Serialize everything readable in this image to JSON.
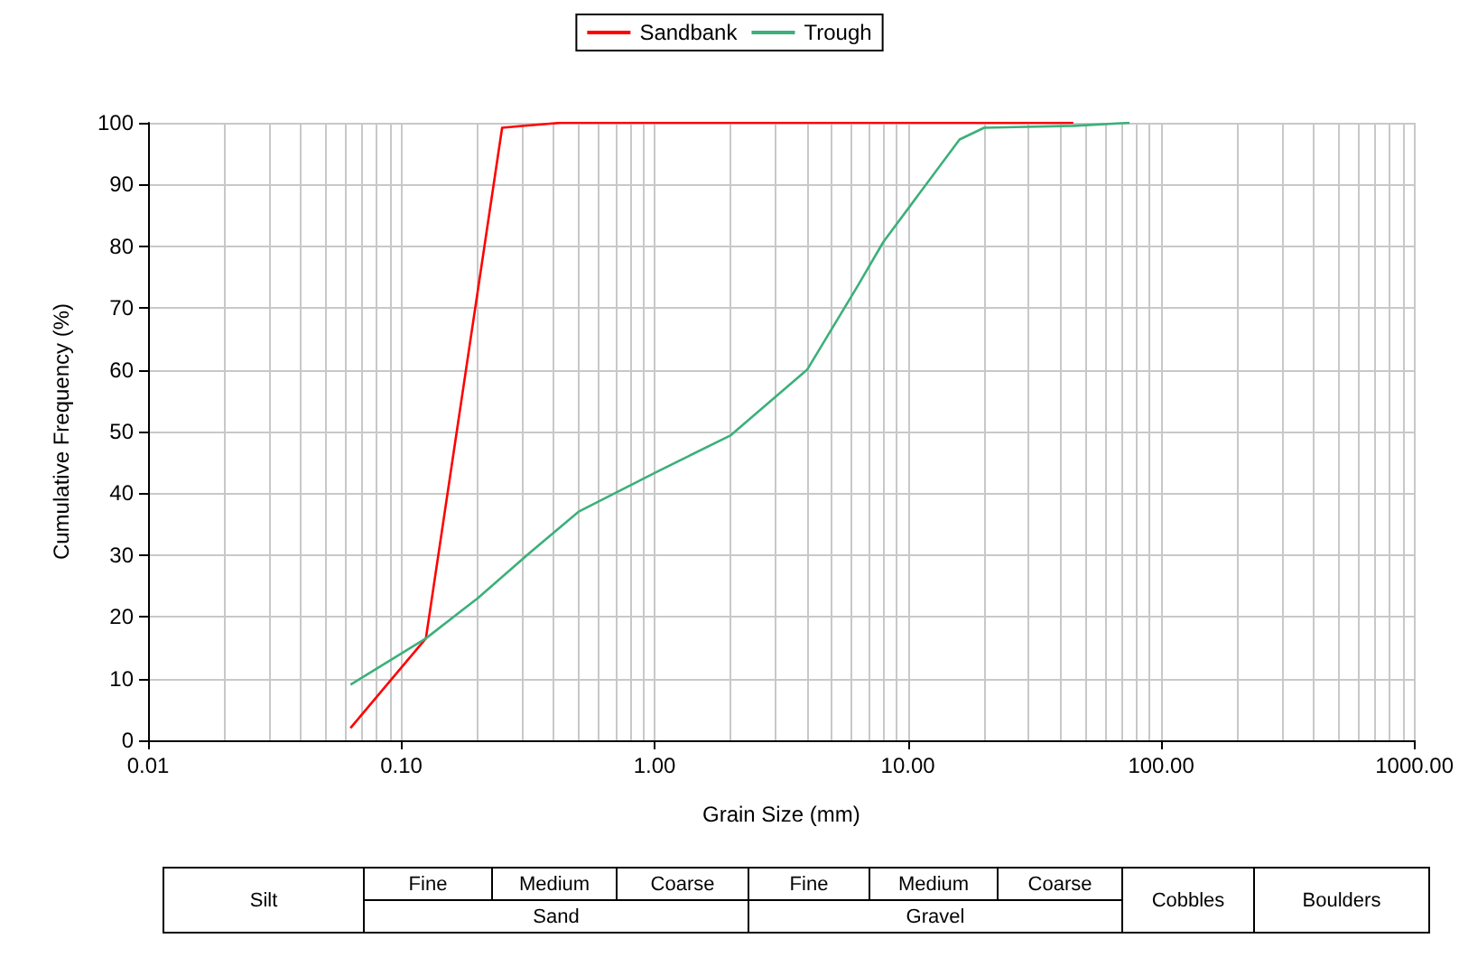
{
  "chart_data": {
    "type": "line",
    "xlabel": "Grain Size (mm)",
    "ylabel": "Cumulative Frequency (%)",
    "series": [
      {
        "name": "Sandbank",
        "color": "#ff0000",
        "x": [
          0.063,
          0.125,
          0.25,
          0.3,
          0.425,
          45
        ],
        "values": [
          2,
          16.5,
          99.2,
          99.5,
          100,
          100
        ]
      },
      {
        "name": "Trough",
        "color": "#3cb07a",
        "x": [
          0.063,
          0.125,
          0.2,
          0.32,
          0.5,
          1,
          2,
          4,
          6.3,
          8,
          16,
          20,
          26.5,
          45,
          75
        ],
        "values": [
          9,
          16.5,
          23,
          30.3,
          37,
          43.3,
          49.4,
          60,
          73.4,
          80.7,
          97.3,
          99.2,
          99.3,
          99.5,
          100
        ]
      }
    ],
    "log": "x",
    "xlim": [
      0.01,
      1000
    ],
    "xticks": [
      {
        "value": 0.01,
        "label": "0.01"
      },
      {
        "value": 0.1,
        "label": "0.10"
      },
      {
        "value": 1,
        "label": "1.00"
      },
      {
        "value": 10,
        "label": "10.00"
      },
      {
        "value": 100,
        "label": "100.00"
      },
      {
        "value": 1000,
        "label": "1000.00"
      }
    ],
    "ylim": [
      0,
      100
    ],
    "yticks": [
      0,
      10,
      20,
      30,
      40,
      50,
      60,
      70,
      80,
      90,
      100
    ],
    "grid": true,
    "legend": "top",
    "marker": "none",
    "line_style": "solid",
    "annotations": [
      "Fine",
      "Medium",
      "Coarse",
      "Fine",
      "Medium",
      "Coarse",
      "Silt",
      "Sand",
      "Gravel",
      "Cobbles",
      "Boulders"
    ]
  }
}
